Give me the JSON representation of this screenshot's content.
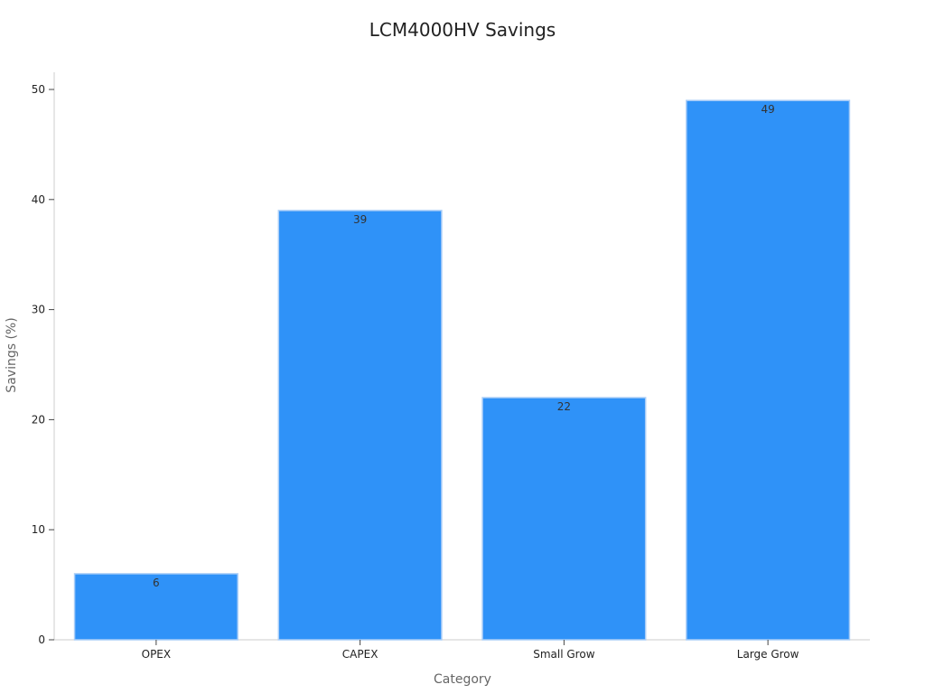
{
  "chart_data": {
    "type": "bar",
    "title": "LCM4000HV Savings",
    "xlabel": "Category",
    "ylabel": "Savings (%)",
    "categories": [
      "OPEX",
      "CAPEX",
      "Small Grow",
      "Large Grow"
    ],
    "values": [
      6,
      39,
      22,
      49
    ],
    "data_labels": [
      "6",
      "39",
      "22",
      "49"
    ],
    "yticks": [
      0,
      10,
      20,
      30,
      40,
      50
    ],
    "ylim": [
      0,
      51.5
    ],
    "grid": false,
    "legend": "none",
    "bar_color": "#2f92f8",
    "bar_edge_color": "#a9cdf7"
  }
}
